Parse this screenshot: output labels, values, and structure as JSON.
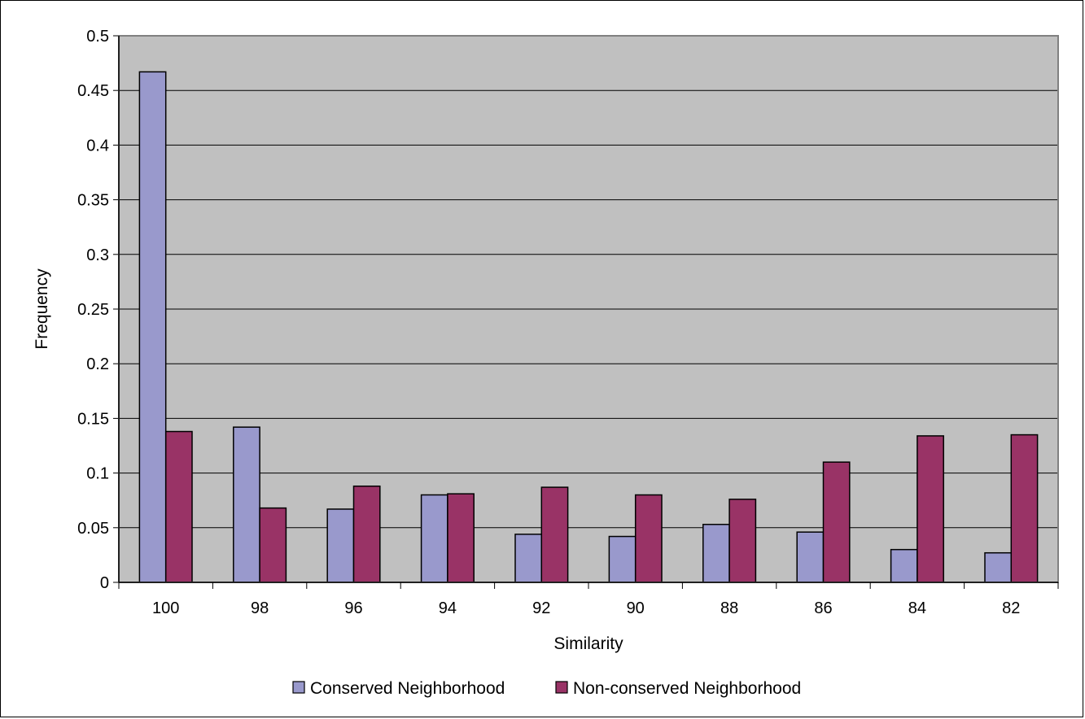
{
  "chart_data": {
    "type": "bar",
    "title": "",
    "xlabel": "Similarity",
    "ylabel": "Frequency",
    "categories": [
      "100",
      "98",
      "96",
      "94",
      "92",
      "90",
      "88",
      "86",
      "84",
      "82"
    ],
    "ylim": [
      0,
      0.5
    ],
    "yticks": [
      "0",
      "0.05",
      "0.1",
      "0.15",
      "0.2",
      "0.25",
      "0.3",
      "0.35",
      "0.4",
      "0.45",
      "0.5"
    ],
    "grid": true,
    "legend_position": "bottom",
    "plot_background": "#c0c0c0",
    "series": [
      {
        "name": "Conserved Neighborhood",
        "color": "#9999cc",
        "values": [
          0.467,
          0.142,
          0.067,
          0.08,
          0.044,
          0.042,
          0.053,
          0.046,
          0.03,
          0.027
        ]
      },
      {
        "name": "Non-conserved Neighborhood",
        "color": "#993366",
        "values": [
          0.138,
          0.068,
          0.088,
          0.081,
          0.087,
          0.08,
          0.076,
          0.11,
          0.134,
          0.135
        ]
      }
    ]
  }
}
